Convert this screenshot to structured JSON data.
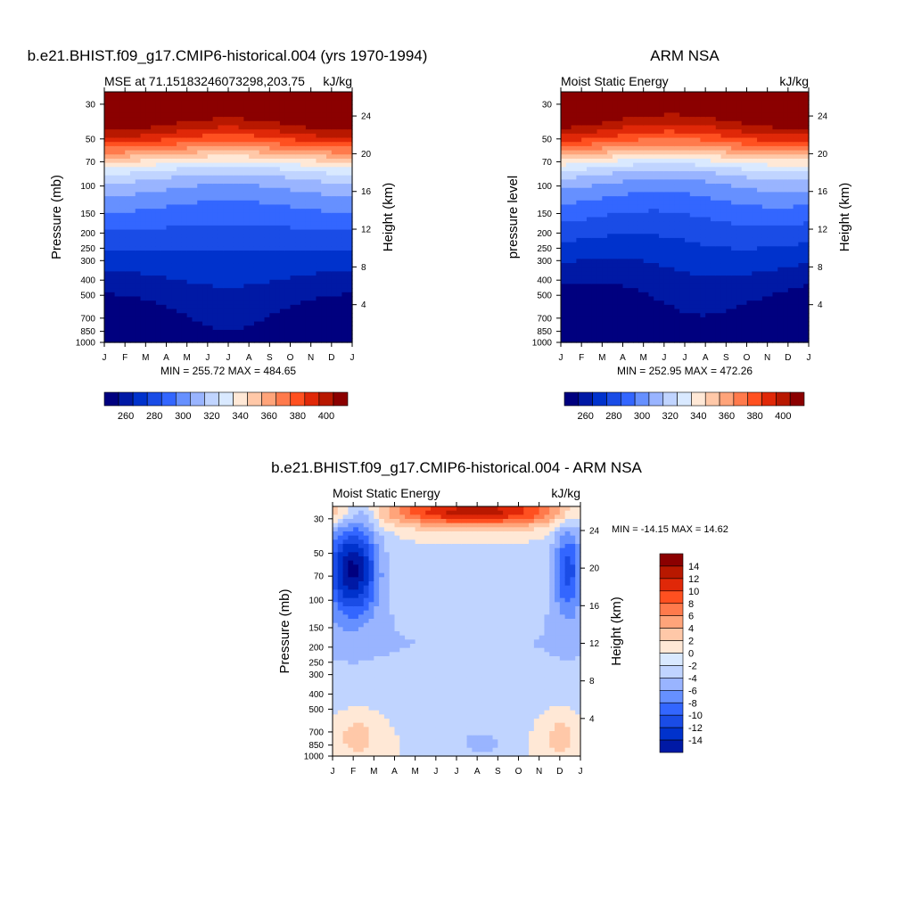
{
  "chart_data": [
    {
      "type": "heatmap",
      "panel": "model",
      "title": "b.e21.BHIST.f09_g17.CMIP6-historical.004 (yrs 1970-1994)",
      "subtitle_left": "MSE at 71.15183246073298,203.75",
      "subtitle_right": "kJ/kg",
      "ylabel": "Pressure (mb)",
      "ylabel_right": "Height (km)",
      "x_ticks": [
        "J",
        "F",
        "M",
        "A",
        "M",
        "J",
        "J",
        "A",
        "S",
        "O",
        "N",
        "D",
        "J"
      ],
      "y_ticks": [
        "30",
        "50",
        "70",
        "100",
        "150",
        "200",
        "250",
        "300",
        "400",
        "500",
        "700",
        "850",
        "1000"
      ],
      "y_ticks_right": [
        "24",
        "20",
        "16",
        "12",
        "8",
        "4"
      ],
      "stats": "MIN = 255.72 MAX = 484.65",
      "colorbar_labels": [
        "260",
        "280",
        "300",
        "320",
        "340",
        "360",
        "380",
        "400"
      ],
      "colorbar_levels": [
        250,
        260,
        270,
        280,
        290,
        300,
        310,
        320,
        330,
        340,
        350,
        360,
        370,
        380,
        390,
        400
      ]
    },
    {
      "type": "heatmap",
      "panel": "observation",
      "title": "ARM NSA",
      "subtitle_left": "Moist Static Energy",
      "subtitle_right": "kJ/kg",
      "ylabel": "pressure level",
      "ylabel_right": "Height (km)",
      "x_ticks": [
        "J",
        "F",
        "M",
        "A",
        "M",
        "J",
        "J",
        "A",
        "S",
        "O",
        "N",
        "D",
        "J"
      ],
      "y_ticks": [
        "30",
        "50",
        "70",
        "100",
        "150",
        "200",
        "250",
        "300",
        "400",
        "500",
        "700",
        "850",
        "1000"
      ],
      "y_ticks_right": [
        "24",
        "20",
        "16",
        "12",
        "8",
        "4"
      ],
      "stats": "MIN = 252.95 MAX = 472.26",
      "colorbar_labels": [
        "260",
        "280",
        "300",
        "320",
        "340",
        "360",
        "380",
        "400"
      ],
      "colorbar_levels": [
        250,
        260,
        270,
        280,
        290,
        300,
        310,
        320,
        330,
        340,
        350,
        360,
        370,
        380,
        390,
        400
      ]
    },
    {
      "type": "heatmap",
      "panel": "difference",
      "title": "b.e21.BHIST.f09_g17.CMIP6-historical.004 - ARM NSA",
      "subtitle_left": "Moist Static Energy",
      "subtitle_right": "kJ/kg",
      "ylabel": "Pressure (mb)",
      "ylabel_right": "Height (km)",
      "x_ticks": [
        "J",
        "F",
        "M",
        "A",
        "M",
        "J",
        "J",
        "A",
        "S",
        "O",
        "N",
        "D",
        "J"
      ],
      "y_ticks": [
        "30",
        "50",
        "70",
        "100",
        "150",
        "200",
        "250",
        "300",
        "400",
        "500",
        "700",
        "850",
        "1000"
      ],
      "y_ticks_right": [
        "24",
        "20",
        "16",
        "12",
        "8",
        "4"
      ],
      "stats": "MIN = -14.15 MAX =  14.62",
      "colorbar_labels": [
        "14",
        "12",
        "10",
        "8",
        "6",
        "4",
        "2",
        "0",
        "-2",
        "-4",
        "-6",
        "-8",
        "-10",
        "-12",
        "-14"
      ],
      "colorbar_levels": [
        -14,
        -12,
        -10,
        -8,
        -6,
        -4,
        -2,
        0,
        2,
        4,
        6,
        8,
        10,
        12,
        14
      ]
    }
  ],
  "colors": {
    "palette": [
      "#00007f",
      "#0019a5",
      "#0032cc",
      "#1a4ce6",
      "#3366ff",
      "#6690ff",
      "#99b4ff",
      "#c0d4ff",
      "#d9e9ff",
      "#ffe8d6",
      "#ffc8a8",
      "#ffa47a",
      "#ff7a4c",
      "#ff5020",
      "#e02808",
      "#b81800",
      "#8b0000"
    ]
  }
}
